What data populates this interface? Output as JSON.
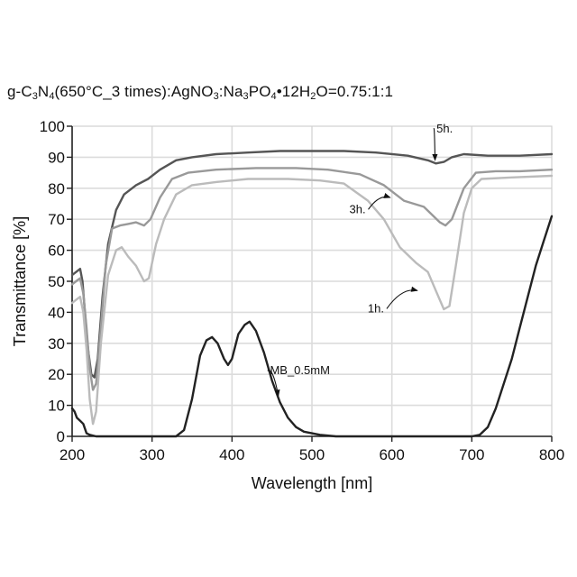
{
  "chart_data": {
    "type": "line",
    "title": {
      "parts": [
        {
          "t": "g-C",
          "sub": false
        },
        {
          "t": "3",
          "sub": true
        },
        {
          "t": "N",
          "sub": false
        },
        {
          "t": "4",
          "sub": true
        },
        {
          "t": "(650°C_3 times):AgNO",
          "sub": false
        },
        {
          "t": "3",
          "sub": true
        },
        {
          "t": ":Na",
          "sub": false
        },
        {
          "t": "3",
          "sub": true
        },
        {
          "t": "PO",
          "sub": false
        },
        {
          "t": "4",
          "sub": true
        },
        {
          "t": "•12H",
          "sub": false
        },
        {
          "t": "2",
          "sub": true
        },
        {
          "t": "O=0.75:1:1",
          "sub": false
        }
      ]
    },
    "xlabel": "Wavelength [nm]",
    "ylabel": "Transmittance [%]",
    "xlim": [
      200,
      800
    ],
    "ylim": [
      0,
      100
    ],
    "xticks": [
      200,
      300,
      400,
      500,
      600,
      700,
      800
    ],
    "yticks": [
      0,
      10,
      20,
      30,
      40,
      50,
      60,
      70,
      80,
      90,
      100
    ],
    "grid": true,
    "series": [
      {
        "name": "5h.",
        "color": "#555555",
        "points": [
          [
            200,
            52
          ],
          [
            205,
            53
          ],
          [
            210,
            54
          ],
          [
            213,
            50
          ],
          [
            216,
            40
          ],
          [
            220,
            28
          ],
          [
            224,
            20
          ],
          [
            228,
            19
          ],
          [
            232,
            25
          ],
          [
            238,
            45
          ],
          [
            245,
            62
          ],
          [
            255,
            73
          ],
          [
            265,
            78
          ],
          [
            280,
            81
          ],
          [
            295,
            83
          ],
          [
            310,
            86
          ],
          [
            330,
            89
          ],
          [
            350,
            90
          ],
          [
            380,
            91
          ],
          [
            420,
            91.5
          ],
          [
            460,
            92
          ],
          [
            500,
            92
          ],
          [
            540,
            92
          ],
          [
            580,
            91.5
          ],
          [
            620,
            90.5
          ],
          [
            645,
            89
          ],
          [
            655,
            88
          ],
          [
            665,
            88.5
          ],
          [
            675,
            90
          ],
          [
            690,
            91
          ],
          [
            720,
            90.5
          ],
          [
            760,
            90.5
          ],
          [
            800,
            91
          ]
        ]
      },
      {
        "name": "3h.",
        "color": "#999999",
        "points": [
          [
            200,
            49
          ],
          [
            205,
            50
          ],
          [
            210,
            51
          ],
          [
            214,
            46
          ],
          [
            218,
            35
          ],
          [
            222,
            22
          ],
          [
            226,
            15
          ],
          [
            230,
            17
          ],
          [
            236,
            35
          ],
          [
            242,
            55
          ],
          [
            250,
            67
          ],
          [
            260,
            68
          ],
          [
            270,
            68.5
          ],
          [
            280,
            69
          ],
          [
            290,
            68
          ],
          [
            298,
            70
          ],
          [
            310,
            77
          ],
          [
            325,
            83
          ],
          [
            345,
            85
          ],
          [
            380,
            86
          ],
          [
            430,
            86.5
          ],
          [
            480,
            86.5
          ],
          [
            520,
            86
          ],
          [
            560,
            84.5
          ],
          [
            590,
            81
          ],
          [
            615,
            76
          ],
          [
            640,
            74
          ],
          [
            660,
            69
          ],
          [
            667,
            68
          ],
          [
            675,
            70
          ],
          [
            690,
            80
          ],
          [
            705,
            85
          ],
          [
            730,
            85.5
          ],
          [
            760,
            85.5
          ],
          [
            800,
            86
          ]
        ]
      },
      {
        "name": "1h.",
        "color": "#bbbbbb",
        "points": [
          [
            200,
            43
          ],
          [
            205,
            44
          ],
          [
            210,
            45
          ],
          [
            214,
            40
          ],
          [
            218,
            28
          ],
          [
            222,
            12
          ],
          [
            226,
            4
          ],
          [
            230,
            8
          ],
          [
            236,
            30
          ],
          [
            245,
            52
          ],
          [
            255,
            60
          ],
          [
            262,
            61
          ],
          [
            270,
            58
          ],
          [
            280,
            55
          ],
          [
            290,
            50
          ],
          [
            296,
            51
          ],
          [
            305,
            62
          ],
          [
            315,
            70
          ],
          [
            330,
            78
          ],
          [
            350,
            81
          ],
          [
            380,
            82
          ],
          [
            420,
            83
          ],
          [
            470,
            83
          ],
          [
            510,
            82.5
          ],
          [
            540,
            81.5
          ],
          [
            570,
            76
          ],
          [
            590,
            70
          ],
          [
            610,
            61
          ],
          [
            630,
            56
          ],
          [
            645,
            53
          ],
          [
            655,
            47
          ],
          [
            665,
            41
          ],
          [
            672,
            42
          ],
          [
            680,
            55
          ],
          [
            690,
            72
          ],
          [
            700,
            80
          ],
          [
            712,
            83
          ],
          [
            750,
            83.5
          ],
          [
            800,
            84
          ]
        ]
      },
      {
        "name": "MB_0.5mM",
        "color": "#222222",
        "points": [
          [
            200,
            9
          ],
          [
            203,
            8
          ],
          [
            206,
            6
          ],
          [
            210,
            5
          ],
          [
            214,
            4
          ],
          [
            218,
            1
          ],
          [
            222,
            0.5
          ],
          [
            230,
            0
          ],
          [
            300,
            0
          ],
          [
            330,
            0
          ],
          [
            340,
            2
          ],
          [
            350,
            12
          ],
          [
            360,
            26
          ],
          [
            368,
            31
          ],
          [
            375,
            32
          ],
          [
            382,
            30
          ],
          [
            390,
            25
          ],
          [
            395,
            23
          ],
          [
            400,
            25
          ],
          [
            408,
            33
          ],
          [
            416,
            36
          ],
          [
            422,
            37
          ],
          [
            430,
            34
          ],
          [
            440,
            27
          ],
          [
            450,
            18
          ],
          [
            460,
            11
          ],
          [
            470,
            6
          ],
          [
            480,
            3
          ],
          [
            490,
            1.5
          ],
          [
            510,
            0.5
          ],
          [
            530,
            0
          ],
          [
            600,
            0
          ],
          [
            700,
            0
          ],
          [
            710,
            0.5
          ],
          [
            720,
            3
          ],
          [
            730,
            9
          ],
          [
            740,
            17
          ],
          [
            750,
            25
          ],
          [
            760,
            35
          ],
          [
            770,
            45
          ],
          [
            780,
            55
          ],
          [
            790,
            63
          ],
          [
            800,
            71
          ]
        ]
      }
    ],
    "annotations": [
      {
        "text": "5h.",
        "x": 666,
        "y": 98,
        "tx": 654,
        "ty": 89
      },
      {
        "text": "3h.",
        "x": 557,
        "y": 72,
        "tx": 598,
        "ty": 77
      },
      {
        "text": "1h.",
        "x": 580,
        "y": 40,
        "tx": 632,
        "ty": 47
      },
      {
        "text": "MB_0.5mM",
        "x": 485,
        "y": 20,
        "tx": 458,
        "ty": 13
      }
    ]
  }
}
